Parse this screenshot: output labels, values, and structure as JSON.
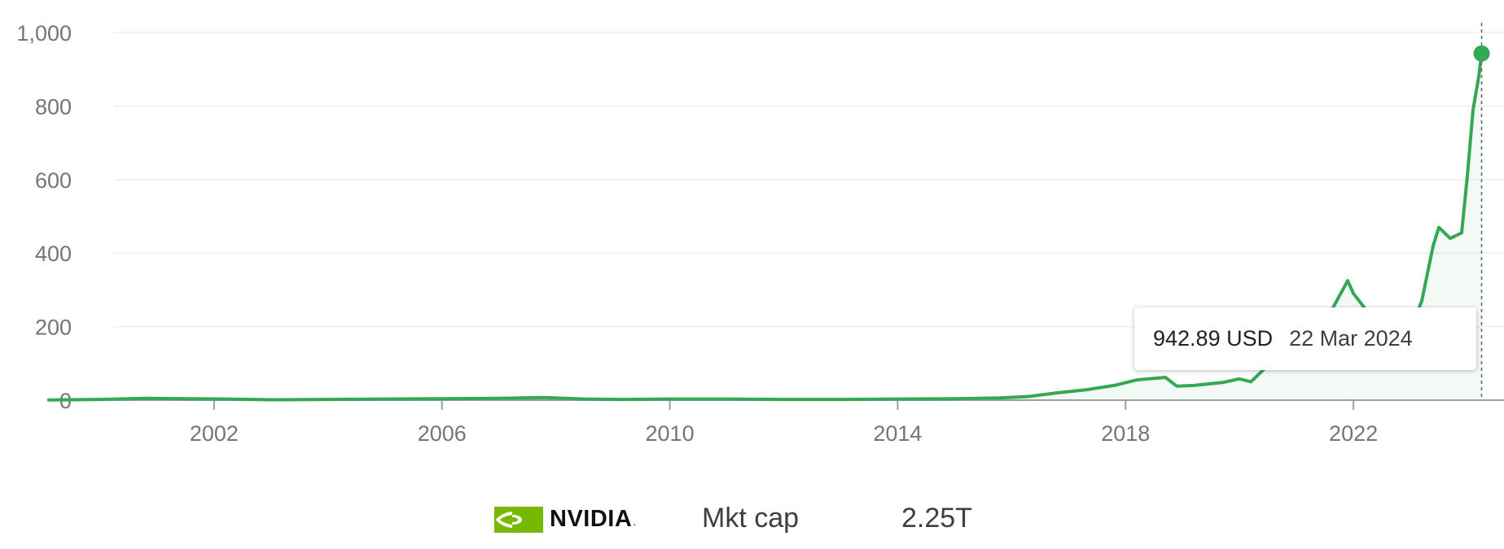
{
  "chart_data": {
    "type": "line",
    "title": "",
    "xlabel": "",
    "ylabel": "",
    "ylim": [
      0,
      1000
    ],
    "xlim": [
      1999.1,
      2024.4
    ],
    "grid": true,
    "y_ticks": [
      {
        "value": 0,
        "label": "0"
      },
      {
        "value": 200,
        "label": "200"
      },
      {
        "value": 400,
        "label": "400"
      },
      {
        "value": 600,
        "label": "600"
      },
      {
        "value": 800,
        "label": "800"
      },
      {
        "value": 1000,
        "label": "1,000"
      }
    ],
    "x_ticks": [
      {
        "value": 2002,
        "label": "2002"
      },
      {
        "value": 2006,
        "label": "2006"
      },
      {
        "value": 2010,
        "label": "2010"
      },
      {
        "value": 2014,
        "label": "2014"
      },
      {
        "value": 2018,
        "label": "2018"
      },
      {
        "value": 2022,
        "label": "2022"
      }
    ],
    "series": [
      {
        "color": "#34a853",
        "x": [
          1999.1,
          2000.0,
          2000.8,
          2001.5,
          2002.2,
          2003.0,
          2004.0,
          2005.0,
          2006.0,
          2007.0,
          2007.8,
          2008.5,
          2009.2,
          2010.0,
          2011.0,
          2012.0,
          2013.0,
          2014.0,
          2015.0,
          2015.8,
          2016.3,
          2016.8,
          2017.3,
          2017.8,
          2018.2,
          2018.7,
          2018.9,
          2019.2,
          2019.7,
          2020.0,
          2020.2,
          2020.5,
          2020.8,
          2021.2,
          2021.6,
          2021.9,
          2022.0,
          2022.3,
          2022.5,
          2022.8,
          2023.0,
          2023.2,
          2023.4,
          2023.5,
          2023.7,
          2023.9,
          2024.0,
          2024.1,
          2024.2,
          2024.25
        ],
        "y": [
          0.5,
          2,
          5,
          4,
          3,
          1,
          2,
          3,
          4,
          5,
          7,
          3,
          2,
          3,
          3,
          2,
          2,
          3,
          4,
          6,
          10,
          20,
          28,
          40,
          55,
          62,
          38,
          40,
          48,
          58,
          50,
          95,
          130,
          190,
          240,
          325,
          290,
          230,
          185,
          140,
          190,
          270,
          420,
          470,
          440,
          455,
          610,
          790,
          880,
          942.89
        ]
      }
    ]
  },
  "tooltip": {
    "value": "942.89 USD",
    "date": "22 Mar 2024"
  },
  "footer": {
    "company": "NVIDIA",
    "logo_dot": ".",
    "metric_label": "Mkt cap",
    "metric_value": "2.25T"
  }
}
